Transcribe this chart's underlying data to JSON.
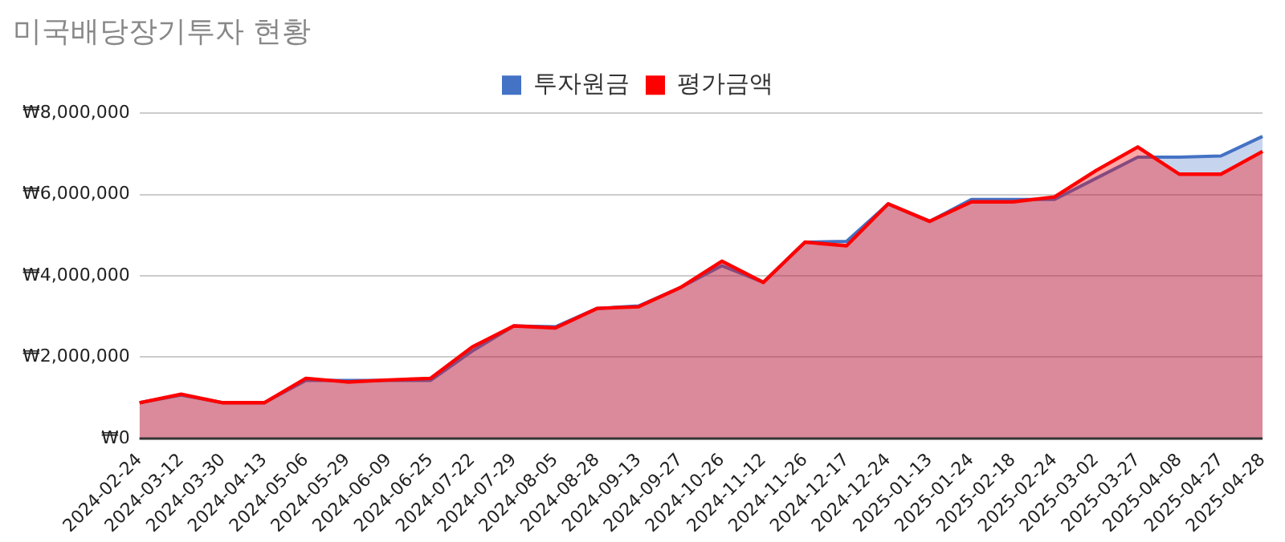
{
  "chart_data": {
    "type": "area",
    "title": "미국배당장기투자 현황",
    "categories": [
      "2024-02-24",
      "2024-03-12",
      "2024-03-30",
      "2024-04-13",
      "2024-05-06",
      "2024-05-29",
      "2024-06-09",
      "2024-06-25",
      "2024-07-22",
      "2024-07-29",
      "2024-08-05",
      "2024-08-28",
      "2024-09-13",
      "2024-09-27",
      "2024-10-26",
      "2024-11-12",
      "2024-11-26",
      "2024-12-17",
      "2024-12-24",
      "2025-01-13",
      "2025-01-24",
      "2025-02-18",
      "2025-02-24",
      "2025-03-02",
      "2025-03-27",
      "2025-04-08",
      "2025-04-27",
      "2025-04-28"
    ],
    "series": [
      {
        "name": "투자원금",
        "color": "#4472c4",
        "values": [
          880000,
          1070000,
          880000,
          880000,
          1430000,
          1430000,
          1430000,
          1430000,
          2150000,
          2770000,
          2750000,
          3200000,
          3260000,
          3710000,
          4250000,
          3840000,
          4830000,
          4850000,
          5770000,
          5340000,
          5880000,
          5880000,
          5880000,
          6400000,
          6920000,
          6920000,
          6950000,
          7430000
        ]
      },
      {
        "name": "평가금액",
        "color": "#ff0000",
        "values": [
          880000,
          1090000,
          880000,
          880000,
          1480000,
          1390000,
          1440000,
          1480000,
          2250000,
          2770000,
          2720000,
          3200000,
          3240000,
          3710000,
          4360000,
          3840000,
          4830000,
          4740000,
          5770000,
          5340000,
          5820000,
          5820000,
          5940000,
          6590000,
          7170000,
          6500000,
          6500000,
          7060000
        ]
      }
    ],
    "ylim": [
      0,
      8000000
    ],
    "yticks": [
      {
        "value": 0,
        "label": "₩0"
      },
      {
        "value": 2000000,
        "label": "₩2,000,000"
      },
      {
        "value": 4000000,
        "label": "₩4,000,000"
      },
      {
        "value": 6000000,
        "label": "₩6,000,000"
      },
      {
        "value": 8000000,
        "label": "₩8,000,000"
      }
    ],
    "grid": "y",
    "legend": "top",
    "marker": "none"
  }
}
